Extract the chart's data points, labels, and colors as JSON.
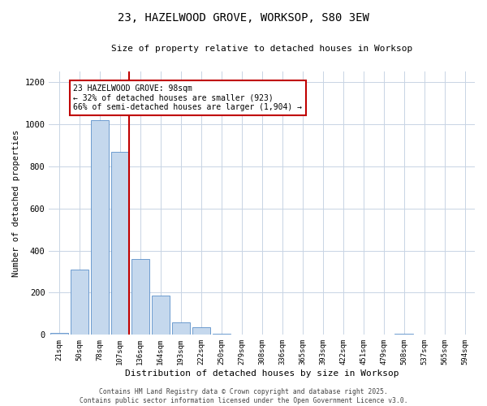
{
  "title_line1": "23, HAZELWOOD GROVE, WORKSOP, S80 3EW",
  "title_line2": "Size of property relative to detached houses in Worksop",
  "xlabel": "Distribution of detached houses by size in Worksop",
  "ylabel": "Number of detached properties",
  "footer_line1": "Contains HM Land Registry data © Crown copyright and database right 2025.",
  "footer_line2": "Contains public sector information licensed under the Open Government Licence v3.0.",
  "categories": [
    "21sqm",
    "50sqm",
    "78sqm",
    "107sqm",
    "136sqm",
    "164sqm",
    "193sqm",
    "222sqm",
    "250sqm",
    "279sqm",
    "308sqm",
    "336sqm",
    "365sqm",
    "393sqm",
    "422sqm",
    "451sqm",
    "479sqm",
    "508sqm",
    "537sqm",
    "565sqm",
    "594sqm"
  ],
  "values": [
    10,
    310,
    1020,
    870,
    360,
    185,
    60,
    35,
    5,
    3,
    2,
    1,
    1,
    0,
    0,
    0,
    0,
    5,
    0,
    0,
    0
  ],
  "bar_color": "#c5d8ed",
  "bar_edge_color": "#5b8fc9",
  "vline_color": "#c00000",
  "vline_index": 3,
  "annotation_text": "23 HAZELWOOD GROVE: 98sqm\n← 32% of detached houses are smaller (923)\n66% of semi-detached houses are larger (1,904) →",
  "annotation_box_edge": "#c00000",
  "ylim": [
    0,
    1250
  ],
  "yticks": [
    0,
    200,
    400,
    600,
    800,
    1000,
    1200
  ],
  "background_color": "#ffffff",
  "grid_color": "#c8d4e4",
  "figwidth": 6.0,
  "figheight": 5.0,
  "dpi": 100
}
